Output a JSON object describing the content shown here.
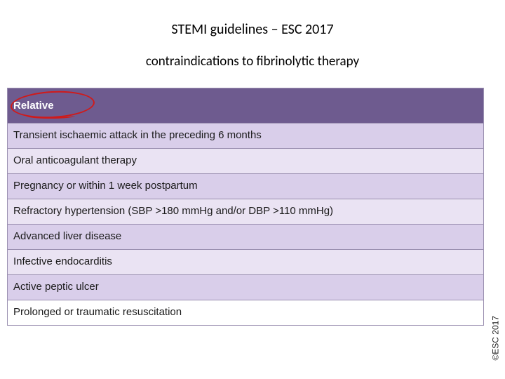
{
  "title": "STEMI guidelines – ESC 2017",
  "subtitle": "contraindications  to fibrinolytic therapy",
  "colors": {
    "header_bg": "#6e5b8f",
    "header_fg": "#ffffff",
    "row_alt1": "#d9ceea",
    "row_alt2": "#eae3f3",
    "row_alt3": "#ffffff",
    "border": "#9a8fb0",
    "circle": "#d01a1a",
    "text": "#1a1a1a"
  },
  "table": {
    "header": "Relative",
    "rows": [
      "Transient ischaemic attack in the preceding 6 months",
      "Oral anticoagulant therapy",
      "Pregnancy or within 1 week postpartum",
      "Refractory hypertension (SBP >180 mmHg and/or DBP >110 mmHg)",
      "Advanced liver disease",
      "Infective endocarditis",
      "Active peptic ulcer",
      "Prolonged or traumatic resuscitation"
    ],
    "row_colors": [
      "#d9ceea",
      "#eae3f3",
      "#d9ceea",
      "#eae3f3",
      "#d9ceea",
      "#eae3f3",
      "#d9ceea",
      "#ffffff"
    ]
  },
  "copyright": "©ESC 2017"
}
